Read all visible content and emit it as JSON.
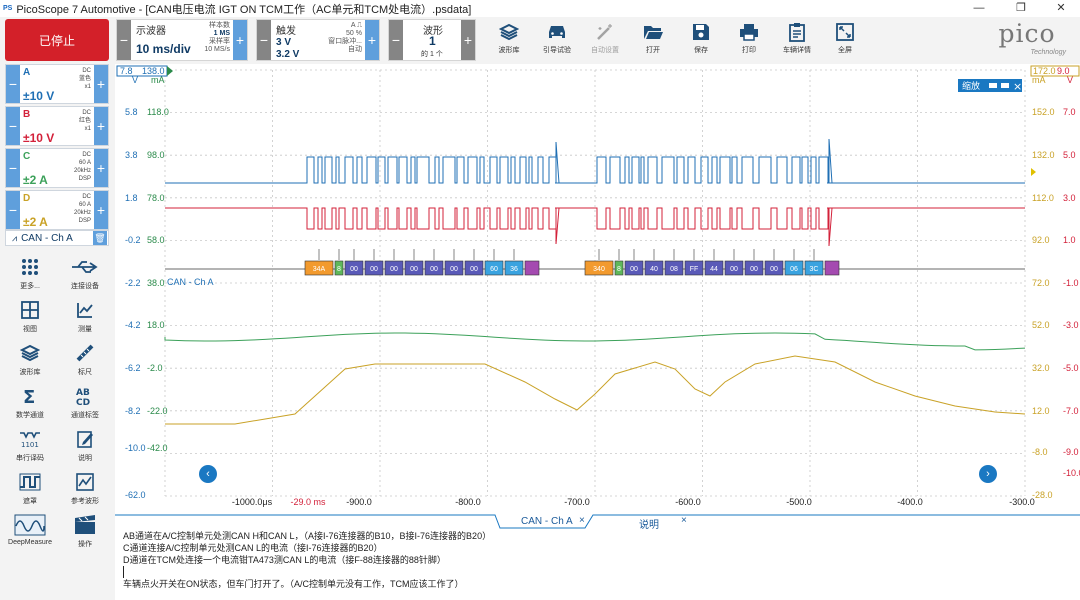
{
  "window": {
    "icon": "PS",
    "title": "PicoScope 7 Automotive - [CAN电压电流 IGT ON TCM工作（AC单元和TCM处电流）.psdata]",
    "buttons": [
      "—",
      "❐",
      "✕"
    ]
  },
  "toolbar": {
    "stop_label": "已停止",
    "scope": {
      "label": "示波器",
      "timebase": "10 ms/div",
      "samples_label": "样本数",
      "samples_value": "1 MS",
      "rate_label": "采样率",
      "rate_value": "10 MS/s"
    },
    "trigger": {
      "label": "触发",
      "channel": "A",
      "value1": "3 V",
      "value2": "3.2 V",
      "info1": "50 %",
      "info2": "窗口脉冲...",
      "info3": "自动"
    },
    "waveform": {
      "label": "波形",
      "count": "1",
      "of": "的 1 个"
    },
    "tools": [
      "波形库",
      "引导试验",
      "自动设置",
      "打开",
      "保存",
      "打印",
      "车辆详情",
      "全屏"
    ],
    "logo": "pico",
    "logo_sub": "Technology"
  },
  "channels": [
    {
      "id": "A",
      "color": "#1f6fb4",
      "range": "±10 V",
      "coupling": "DC",
      "name": "蓝色",
      "probe": "x1",
      "extra": ""
    },
    {
      "id": "B",
      "color": "#d3213a",
      "range": "±10 V",
      "coupling": "DC",
      "name": "红色",
      "probe": "x1",
      "extra": ""
    },
    {
      "id": "C",
      "color": "#3ca15a",
      "range": "±2 A",
      "coupling": "DC",
      "name": "60 A",
      "probe": "20kHz",
      "extra": "DSP"
    },
    {
      "id": "D",
      "color": "#c9a227",
      "range": "±2 A",
      "coupling": "DC",
      "name": "60 A",
      "probe": "20kHz",
      "extra": "DSP"
    }
  ],
  "decoder": {
    "label": "CAN - Ch A"
  },
  "side_tools": [
    "更多...",
    "连接设备",
    "视图",
    "测量",
    "波形库",
    "标尺",
    "数学通道",
    "通道标签",
    "串行译码",
    "说明",
    "遮罩",
    "参考波形",
    "DeepMeasure",
    "操作"
  ],
  "scope": {
    "zoom_label": "缩放",
    "top_markers": {
      "left_value": "7.8",
      "left_value2": "138.0",
      "right_value": "172.0",
      "right_value2": "9.0"
    },
    "units": {
      "a": "V",
      "b": "mA",
      "c": "mA",
      "d": "V"
    },
    "axis_left_a": [
      "5.8",
      "3.8",
      "1.8",
      "-0.2",
      "-2.2",
      "-4.2",
      "-6.2",
      "-8.2",
      "-10.0",
      "-62.0"
    ],
    "axis_left_b": [
      "118.0",
      "98.0",
      "78.0",
      "58.0",
      "38.0",
      "18.0",
      "-2.0",
      "-22.0",
      "-42.0"
    ],
    "axis_right_c": [
      "152.0",
      "132.0",
      "112.0",
      "92.0",
      "72.0",
      "52.0",
      "32.0",
      "12.0",
      "-8.0",
      "-28.0"
    ],
    "axis_right_d": [
      "7.0",
      "5.0",
      "3.0",
      "1.0",
      "-1.0",
      "-3.0",
      "-5.0",
      "-7.0",
      "-9.0",
      "-10.0"
    ],
    "x_ticks": [
      "-1000.0μs",
      "-900.0",
      "-800.0",
      "-700.0",
      "-600.0",
      "-500.0",
      "-400.0",
      "-300.0"
    ],
    "x_extra": "-29.0 ms",
    "decode_label": "CAN - Ch A",
    "frame1": [
      "34A",
      "8",
      "00",
      "00",
      "00",
      "00",
      "00",
      "00",
      "00",
      "60",
      "36"
    ],
    "frame2": [
      "340",
      "8",
      "00",
      "40",
      "08",
      "FF",
      "44",
      "00",
      "00",
      "00",
      "06",
      "3C"
    ]
  },
  "tabs": [
    {
      "label": "CAN - Ch A"
    },
    {
      "label": "说明"
    }
  ],
  "notes": [
    "AB通道在A/C控制单元处测CAN H和CAN L，（A接I-76连接器的B10，B接I-76连接器的B20）",
    "C通道连接A/C控制单元处测CAN L的电流（接I-76连接器的B20）",
    "D通道在TCM处连接一个电流钳TA473测CAN L的电流（接F-88连接器的88针脚）",
    "",
    "车辆点火开关在ON状态，但车门打开了。（A/C控制单元没有工作，TCM应该工作了）"
  ]
}
